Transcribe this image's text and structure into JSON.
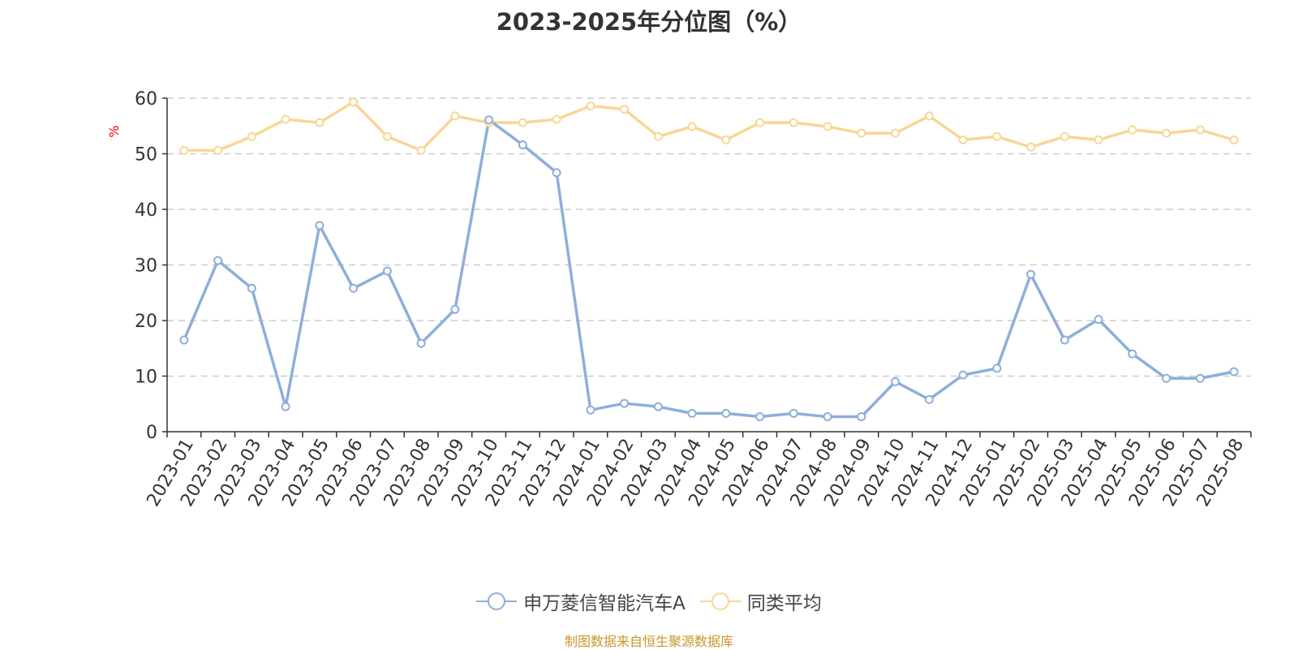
{
  "chart_data": {
    "type": "line",
    "title": "2023-2025年分位图（%）",
    "ylabel": "%",
    "ylim": [
      0,
      60
    ],
    "yticks": [
      0,
      10,
      20,
      30,
      40,
      50,
      60
    ],
    "grid": true,
    "legend_position": "bottom",
    "categories": [
      "2023-01",
      "2023-02",
      "2023-03",
      "2023-04",
      "2023-05",
      "2023-06",
      "2023-07",
      "2023-08",
      "2023-09",
      "2023-10",
      "2023-11",
      "2023-12",
      "2024-01",
      "2024-02",
      "2024-03",
      "2024-04",
      "2024-05",
      "2024-06",
      "2024-07",
      "2024-08",
      "2024-09",
      "2024-10",
      "2024-11",
      "2024-12",
      "2025-01",
      "2025-02",
      "2025-03",
      "2025-04",
      "2025-05",
      "2025-06",
      "2025-07",
      "2025-08"
    ],
    "series": [
      {
        "name": "申万菱信智能汽车A",
        "color": "#8eaedb",
        "values": [
          16.5,
          30.8,
          25.8,
          4.5,
          37.1,
          25.8,
          28.9,
          15.9,
          22.0,
          56.1,
          51.6,
          46.6,
          3.9,
          5.1,
          4.5,
          3.3,
          3.3,
          2.7,
          3.3,
          2.7,
          2.7,
          9.0,
          5.8,
          10.2,
          11.4,
          28.3,
          16.5,
          20.2,
          14.0,
          9.6,
          9.6,
          10.8
        ]
      },
      {
        "name": "同类平均",
        "color": "#f7d795",
        "values": [
          50.6,
          50.6,
          53.1,
          56.2,
          55.6,
          59.3,
          53.1,
          50.6,
          56.8,
          55.6,
          55.6,
          56.2,
          58.6,
          58.0,
          53.1,
          54.9,
          52.5,
          55.6,
          55.6,
          54.9,
          53.7,
          53.7,
          56.8,
          52.5,
          53.1,
          51.2,
          53.1,
          52.5,
          54.3,
          53.7,
          54.3,
          52.5
        ]
      }
    ]
  },
  "source_note": "制图数据来自恒生聚源数据库"
}
